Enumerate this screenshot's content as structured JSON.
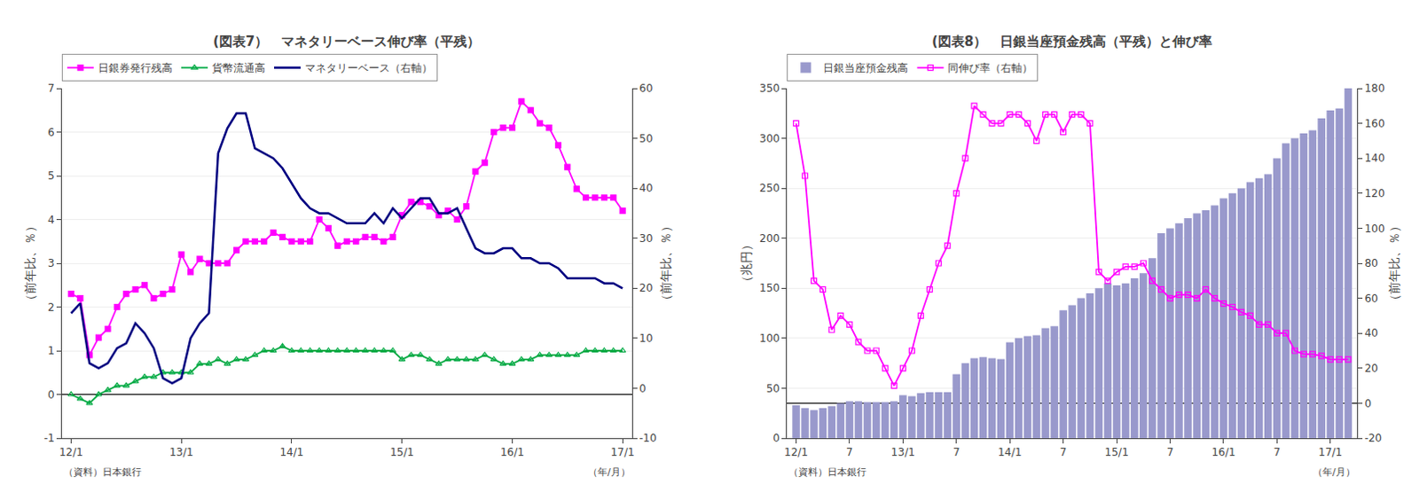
{
  "chart_data": [
    {
      "type": "line",
      "title": "(図表7）　マネタリーベース伸び率（平残）",
      "ylabel": "（前年比、％）",
      "y2label": "（前年比、％）",
      "xlabel": "（年/月）",
      "annotations": [
        "（資料）日本銀行"
      ],
      "categories": [
        "12/1",
        null,
        null,
        null,
        null,
        null,
        null,
        null,
        null,
        null,
        null,
        null,
        "13/1",
        null,
        null,
        null,
        null,
        null,
        null,
        null,
        null,
        null,
        null,
        null,
        "14/1",
        null,
        null,
        null,
        null,
        null,
        null,
        null,
        null,
        null,
        null,
        null,
        "15/1",
        null,
        null,
        null,
        null,
        null,
        null,
        null,
        null,
        null,
        null,
        null,
        "16/1",
        null,
        null,
        null,
        null,
        null,
        null,
        null,
        null,
        null,
        null,
        null,
        "17/1"
      ],
      "series": [
        {
          "name": "日銀券発行残高",
          "color": "#ff00ff",
          "marker": "square",
          "values": [
            2.3,
            2.2,
            0.9,
            1.3,
            1.5,
            2.0,
            2.3,
            2.4,
            2.5,
            2.2,
            2.3,
            2.4,
            3.2,
            2.8,
            3.1,
            3.0,
            3.0,
            3.0,
            3.3,
            3.5,
            3.5,
            3.5,
            3.7,
            3.6,
            3.5,
            3.5,
            3.5,
            4.0,
            3.8,
            3.4,
            3.5,
            3.5,
            3.6,
            3.6,
            3.5,
            3.6,
            4.1,
            4.4,
            4.4,
            4.3,
            4.1,
            4.2,
            4.0,
            4.3,
            5.1,
            5.3,
            6.0,
            6.1,
            6.1,
            6.7,
            6.5,
            6.2,
            6.1,
            5.7,
            5.2,
            4.7,
            4.5,
            4.5,
            4.5,
            4.5,
            4.2
          ]
        },
        {
          "name": "貨幣流通高",
          "color": "#00aa44",
          "marker": "triangle-up-open",
          "values": [
            0.0,
            -0.1,
            -0.2,
            0.0,
            0.1,
            0.2,
            0.2,
            0.3,
            0.4,
            0.4,
            0.5,
            0.5,
            0.5,
            0.5,
            0.7,
            0.7,
            0.8,
            0.7,
            0.8,
            0.8,
            0.9,
            1.0,
            1.0,
            1.1,
            1.0,
            1.0,
            1.0,
            1.0,
            1.0,
            1.0,
            1.0,
            1.0,
            1.0,
            1.0,
            1.0,
            1.0,
            0.8,
            0.9,
            0.9,
            0.8,
            0.7,
            0.8,
            0.8,
            0.8,
            0.8,
            0.9,
            0.8,
            0.7,
            0.7,
            0.8,
            0.8,
            0.9,
            0.9,
            0.9,
            0.9,
            0.9,
            1.0,
            1.0,
            1.0,
            1.0,
            1.0
          ]
        },
        {
          "name": "マネタリーベース（右軸）",
          "color": "#000080",
          "axis": "y2",
          "values": [
            15,
            17,
            5,
            4,
            5,
            8,
            9,
            13,
            11,
            8,
            2,
            1,
            2,
            10,
            13,
            15,
            47,
            52,
            55,
            55,
            48,
            47,
            46,
            44,
            41,
            38,
            36,
            35,
            35,
            34,
            33,
            33,
            33,
            35,
            33,
            36,
            34,
            36,
            38,
            38,
            35,
            35,
            36,
            32,
            28,
            27,
            27,
            28,
            28,
            26,
            26,
            25,
            25,
            24,
            22,
            22,
            22,
            22,
            21,
            21,
            20
          ]
        }
      ],
      "ylim": [
        -1,
        7
      ],
      "yticks": [
        -1,
        0,
        1,
        2,
        3,
        4,
        5,
        6,
        7
      ],
      "y2lim": [
        -10,
        60
      ],
      "y2ticks": [
        -10,
        0,
        10,
        20,
        30,
        40,
        50,
        60
      ],
      "grid": true,
      "legend": "top"
    },
    {
      "type": "bar",
      "title": "(図表8）　日銀当座預金残高（平残）と伸び率",
      "ylabel": "（兆円）",
      "y2label": "（前年比、％）",
      "xlabel": "（年/月）",
      "annotations": [
        "（資料）日本銀行"
      ],
      "categories": [
        "12/1",
        null,
        null,
        null,
        null,
        null,
        "7",
        null,
        null,
        null,
        null,
        null,
        "13/1",
        null,
        null,
        null,
        null,
        null,
        "7",
        null,
        null,
        null,
        null,
        null,
        "14/1",
        null,
        null,
        null,
        null,
        null,
        "7",
        null,
        null,
        null,
        null,
        null,
        "15/1",
        null,
        null,
        null,
        null,
        null,
        "7",
        null,
        null,
        null,
        null,
        null,
        "16/1",
        null,
        null,
        null,
        null,
        null,
        "7",
        null,
        null,
        null,
        null,
        null,
        "17/1",
        null,
        null
      ],
      "series": [
        {
          "name": "日銀当座預金残高",
          "type": "bar",
          "color": "#9999cc",
          "values": [
            33,
            30,
            28,
            30,
            32,
            35,
            37,
            37,
            36,
            36,
            36,
            37,
            43,
            42,
            45,
            46,
            46,
            46,
            64,
            75,
            80,
            81,
            80,
            79,
            96,
            100,
            102,
            103,
            110,
            112,
            128,
            133,
            140,
            145,
            150,
            155,
            153,
            155,
            160,
            165,
            180,
            205,
            210,
            215,
            220,
            225,
            228,
            233,
            240,
            245,
            250,
            256,
            260,
            264,
            280,
            295,
            300,
            305,
            308,
            320,
            328,
            330,
            350
          ]
        },
        {
          "name": "同伸び率（右軸）",
          "type": "line",
          "color": "#ff00ff",
          "marker": "square-open",
          "axis": "y2",
          "values": [
            160,
            130,
            70,
            65,
            42,
            50,
            45,
            35,
            30,
            30,
            20,
            10,
            20,
            30,
            50,
            65,
            80,
            90,
            120,
            140,
            170,
            165,
            160,
            160,
            165,
            165,
            160,
            150,
            165,
            165,
            155,
            165,
            165,
            160,
            75,
            70,
            75,
            78,
            78,
            80,
            70,
            65,
            60,
            62,
            62,
            60,
            65,
            60,
            57,
            55,
            52,
            50,
            45,
            45,
            40,
            40,
            30,
            28,
            28,
            27,
            25,
            25,
            25
          ]
        }
      ],
      "ylim": [
        0,
        350
      ],
      "yticks": [
        0,
        50,
        100,
        150,
        200,
        250,
        300,
        350
      ],
      "y2lim": [
        -20,
        180
      ],
      "y2ticks": [
        -20,
        0,
        20,
        40,
        60,
        80,
        100,
        120,
        140,
        160,
        180
      ],
      "grid": true,
      "legend": "top"
    }
  ]
}
